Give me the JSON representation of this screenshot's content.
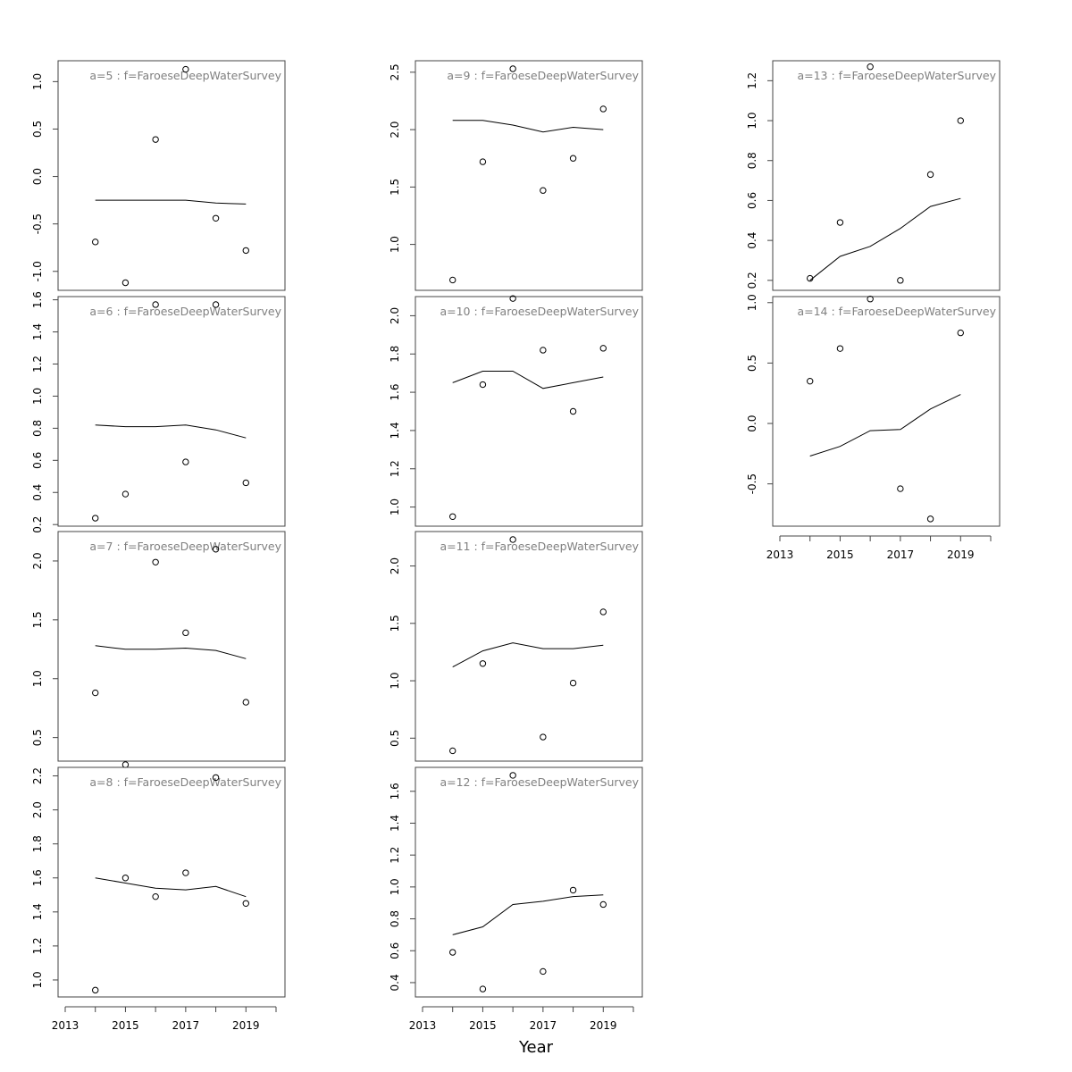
{
  "chart_data": {
    "type": "scatter",
    "xlabel": "Year",
    "x_ticks": [
      2013,
      2015,
      2017,
      2019
    ],
    "xlim": [
      2013,
      2020
    ],
    "panels": [
      {
        "title": "a=5  :  f=FaroeseDeepWaterSurvey",
        "y_ticks": [
          "-1.0",
          "-0.5",
          "0.0",
          "0.5",
          "1.0"
        ],
        "ylim": [
          -1.2,
          1.22
        ],
        "points": [
          [
            2014,
            -0.69
          ],
          [
            2015,
            -1.12
          ],
          [
            2016,
            0.39
          ],
          [
            2017,
            1.13
          ],
          [
            2018,
            -0.44
          ],
          [
            2019,
            -0.78
          ]
        ],
        "fit": [
          [
            2014,
            -0.25
          ],
          [
            2015,
            -0.25
          ],
          [
            2016,
            -0.25
          ],
          [
            2017,
            -0.25
          ],
          [
            2018,
            -0.28
          ],
          [
            2019,
            -0.29
          ]
        ]
      },
      {
        "title": "a=6  :  f=FaroeseDeepWaterSurvey",
        "y_ticks": [
          "0.2",
          "0.4",
          "0.6",
          "0.8",
          "1.0",
          "1.2",
          "1.4",
          "1.6"
        ],
        "ylim": [
          0.19,
          1.62
        ],
        "points": [
          [
            2014,
            0.24
          ],
          [
            2015,
            0.39
          ],
          [
            2016,
            1.57
          ],
          [
            2017,
            0.59
          ],
          [
            2018,
            1.57
          ],
          [
            2019,
            0.46
          ]
        ],
        "fit": [
          [
            2014,
            0.82
          ],
          [
            2015,
            0.81
          ],
          [
            2016,
            0.81
          ],
          [
            2017,
            0.82
          ],
          [
            2018,
            0.79
          ],
          [
            2019,
            0.74
          ]
        ]
      },
      {
        "title": "a=7  :  f=FaroeseDeepWaterSurvey",
        "y_ticks": [
          "0.5",
          "1.0",
          "1.5",
          "2.0"
        ],
        "ylim": [
          0.3,
          2.25
        ],
        "points": [
          [
            2014,
            0.88
          ],
          [
            2015,
            0.27
          ],
          [
            2016,
            1.99
          ],
          [
            2017,
            1.39
          ],
          [
            2018,
            2.1
          ],
          [
            2019,
            0.8
          ]
        ],
        "fit": [
          [
            2014,
            1.28
          ],
          [
            2015,
            1.25
          ],
          [
            2016,
            1.25
          ],
          [
            2017,
            1.26
          ],
          [
            2018,
            1.24
          ],
          [
            2019,
            1.17
          ]
        ]
      },
      {
        "title": "a=8  :  f=FaroeseDeepWaterSurvey",
        "y_ticks": [
          "1.0",
          "1.2",
          "1.4",
          "1.6",
          "1.8",
          "2.0",
          "2.2"
        ],
        "ylim": [
          0.9,
          2.25
        ],
        "points": [
          [
            2014,
            0.94
          ],
          [
            2015,
            1.6
          ],
          [
            2016,
            1.49
          ],
          [
            2017,
            1.63
          ],
          [
            2018,
            2.19
          ],
          [
            2019,
            1.45
          ]
        ],
        "fit": [
          [
            2014,
            1.6
          ],
          [
            2015,
            1.57
          ],
          [
            2016,
            1.54
          ],
          [
            2017,
            1.53
          ],
          [
            2018,
            1.55
          ],
          [
            2019,
            1.49
          ]
        ]
      },
      {
        "title": "a=9  :  f=FaroeseDeepWaterSurvey",
        "y_ticks": [
          "1.0",
          "1.5",
          "2.0",
          "2.5"
        ],
        "ylim": [
          0.6,
          2.6
        ],
        "points": [
          [
            2014,
            0.69
          ],
          [
            2015,
            1.72
          ],
          [
            2016,
            2.53
          ],
          [
            2017,
            1.47
          ],
          [
            2018,
            1.75
          ],
          [
            2019,
            2.18
          ]
        ],
        "fit": [
          [
            2014,
            2.08
          ],
          [
            2015,
            2.08
          ],
          [
            2016,
            2.04
          ],
          [
            2017,
            1.98
          ],
          [
            2018,
            2.02
          ],
          [
            2019,
            2.0
          ]
        ]
      },
      {
        "title": "a=10  :  f=FaroeseDeepWaterSurvey",
        "y_ticks": [
          "1.0",
          "1.2",
          "1.4",
          "1.6",
          "1.8",
          "2.0"
        ],
        "ylim": [
          0.9,
          2.1
        ],
        "points": [
          [
            2014,
            0.95
          ],
          [
            2015,
            1.64
          ],
          [
            2016,
            2.09
          ],
          [
            2017,
            1.82
          ],
          [
            2018,
            1.5
          ],
          [
            2019,
            1.83
          ]
        ],
        "fit": [
          [
            2014,
            1.65
          ],
          [
            2015,
            1.71
          ],
          [
            2016,
            1.71
          ],
          [
            2017,
            1.62
          ],
          [
            2018,
            1.65
          ],
          [
            2019,
            1.68
          ]
        ]
      },
      {
        "title": "a=11  :  f=FaroeseDeepWaterSurvey",
        "y_ticks": [
          "0.5",
          "1.0",
          "1.5",
          "2.0"
        ],
        "ylim": [
          0.3,
          2.3
        ],
        "points": [
          [
            2014,
            0.39
          ],
          [
            2015,
            1.15
          ],
          [
            2016,
            2.23
          ],
          [
            2017,
            0.51
          ],
          [
            2018,
            0.98
          ],
          [
            2019,
            1.6
          ]
        ],
        "fit": [
          [
            2014,
            1.12
          ],
          [
            2015,
            1.26
          ],
          [
            2016,
            1.33
          ],
          [
            2017,
            1.28
          ],
          [
            2018,
            1.28
          ],
          [
            2019,
            1.31
          ]
        ]
      },
      {
        "title": "a=12  :  f=FaroeseDeepWaterSurvey",
        "y_ticks": [
          "0.4",
          "0.6",
          "0.8",
          "1.0",
          "1.2",
          "1.4",
          "1.6"
        ],
        "ylim": [
          0.31,
          1.75
        ],
        "points": [
          [
            2014,
            0.59
          ],
          [
            2015,
            0.36
          ],
          [
            2016,
            1.7
          ],
          [
            2017,
            0.47
          ],
          [
            2018,
            0.98
          ],
          [
            2019,
            0.89
          ]
        ],
        "fit": [
          [
            2014,
            0.7
          ],
          [
            2015,
            0.75
          ],
          [
            2016,
            0.89
          ],
          [
            2017,
            0.91
          ],
          [
            2018,
            0.94
          ],
          [
            2019,
            0.95
          ]
        ]
      },
      {
        "title": "a=13  :  f=FaroeseDeepWaterSurvey",
        "y_ticks": [
          "0.2",
          "0.4",
          "0.6",
          "0.8",
          "1.0",
          "1.2"
        ],
        "ylim": [
          0.15,
          1.3
        ],
        "points": [
          [
            2014,
            0.21
          ],
          [
            2015,
            0.49
          ],
          [
            2016,
            1.27
          ],
          [
            2017,
            0.2
          ],
          [
            2018,
            0.73
          ],
          [
            2019,
            1.0
          ]
        ],
        "fit": [
          [
            2014,
            0.2
          ],
          [
            2015,
            0.32
          ],
          [
            2016,
            0.37
          ],
          [
            2017,
            0.46
          ],
          [
            2018,
            0.57
          ],
          [
            2019,
            0.61
          ]
        ]
      },
      {
        "title": "a=14  :  f=FaroeseDeepWaterSurvey",
        "y_ticks": [
          "-0.5",
          "0.0",
          "0.5",
          "1.0"
        ],
        "ylim": [
          -0.85,
          1.05
        ],
        "points": [
          [
            2014,
            0.35
          ],
          [
            2015,
            0.62
          ],
          [
            2016,
            1.03
          ],
          [
            2017,
            -0.54
          ],
          [
            2018,
            -0.79
          ],
          [
            2019,
            0.75
          ]
        ],
        "fit": [
          [
            2014,
            -0.27
          ],
          [
            2015,
            -0.19
          ],
          [
            2016,
            -0.06
          ],
          [
            2017,
            -0.05
          ],
          [
            2018,
            0.12
          ],
          [
            2019,
            0.24
          ]
        ]
      }
    ]
  }
}
